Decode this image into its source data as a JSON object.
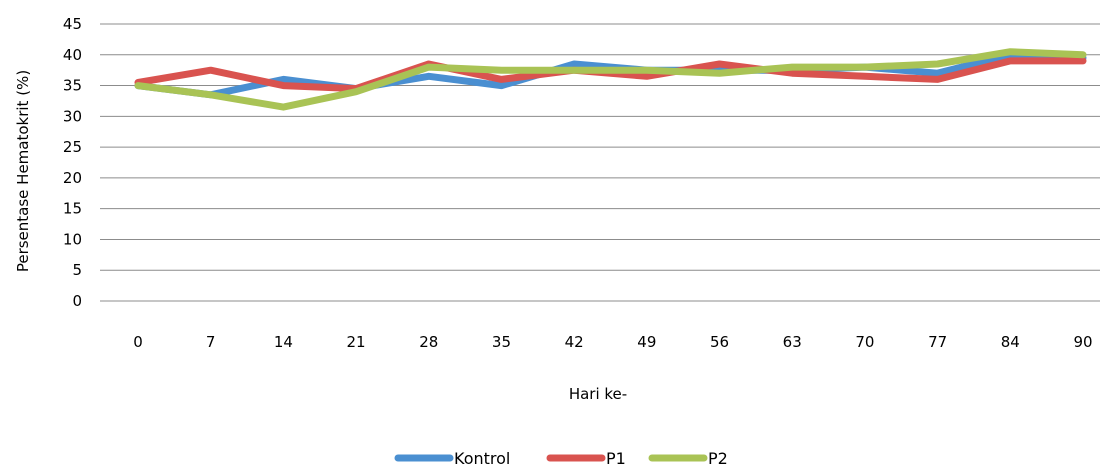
{
  "chart_data": {
    "type": "line",
    "xlabel": "Hari ke-",
    "ylabel": "Persentase Hematokrit  (%)",
    "categories": [
      "0",
      "7",
      "14",
      "21",
      "28",
      "35",
      "42",
      "49",
      "56",
      "63",
      "70",
      "77",
      "84",
      "90"
    ],
    "ylim": [
      0,
      45
    ],
    "yticks": [
      0,
      5,
      10,
      15,
      20,
      25,
      30,
      35,
      40,
      45
    ],
    "grid": "horizontal",
    "legend_position": "bottom",
    "series": [
      {
        "name": "Kontrol",
        "color": "#4a8fd1",
        "values": [
          35,
          33.5,
          36,
          34.5,
          36.5,
          35,
          38.5,
          37.5,
          37.5,
          37.5,
          38,
          37,
          40,
          39.5
        ]
      },
      {
        "name": "P1",
        "color": "#d9534f",
        "values": [
          35.5,
          37.5,
          35,
          34.5,
          38.5,
          36,
          37.5,
          36.5,
          38.5,
          37,
          36.5,
          36,
          39,
          39
        ]
      },
      {
        "name": "P2",
        "color": "#a9c355",
        "values": [
          35,
          33.5,
          31.5,
          34,
          38,
          37.5,
          37.5,
          37.5,
          37,
          38,
          38,
          38.5,
          40.5,
          40
        ]
      }
    ]
  }
}
